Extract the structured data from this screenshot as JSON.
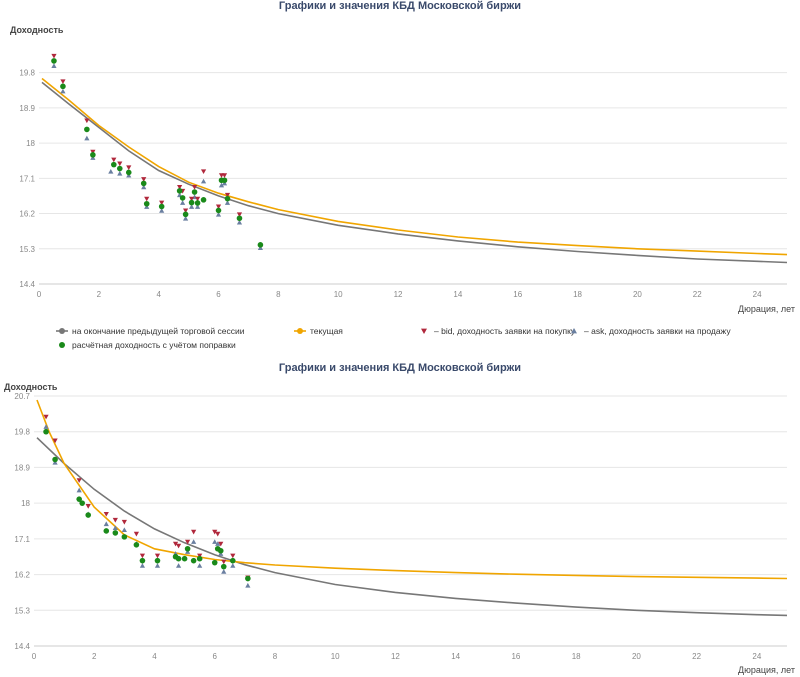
{
  "chart_data": [
    {
      "type": "scatter",
      "title": "Графики и значения КБД Московской биржи",
      "ylabel": "Доходность",
      "xlabel": "Дюрация, лет",
      "xlim": [
        0,
        25
      ],
      "ylim": [
        14.4,
        20.2
      ],
      "xticks": [
        "0",
        "2",
        "4",
        "6",
        "8",
        "10",
        "12",
        "14",
        "16",
        "18",
        "20",
        "22",
        "24"
      ],
      "yticks": [
        "19.8",
        "18.9",
        "18",
        "17.1",
        "16.2",
        "15.3",
        "14.4"
      ],
      "grid": true,
      "legend_position": "bottom",
      "legend": [
        {
          "label": "на окончание предыдущей торговой сессии",
          "marker": "circle",
          "color": "#777777"
        },
        {
          "label": "текущая",
          "marker": "circle",
          "color": "#f0a500"
        },
        {
          "label": "– bid, доходность заявки на покупку",
          "marker": "triangle-down",
          "color": "#b0283c"
        },
        {
          "label": "– ask, доходность заявки на продажу",
          "marker": "triangle-up",
          "color": "#6a7fa0"
        },
        {
          "label": "расчётная доходность с учётом поправки",
          "marker": "circle",
          "color": "#1a8a1a"
        }
      ],
      "series": [
        {
          "kind": "curve",
          "color": "#777777",
          "x": [
            0.1,
            1,
            2,
            3,
            4,
            5,
            6,
            7,
            8,
            10,
            12,
            14,
            16,
            18,
            20,
            22,
            24,
            25
          ],
          "y": [
            19.55,
            19.0,
            18.4,
            17.8,
            17.3,
            16.95,
            16.65,
            16.4,
            16.2,
            15.9,
            15.68,
            15.5,
            15.35,
            15.23,
            15.13,
            15.04,
            14.98,
            14.95
          ]
        },
        {
          "kind": "curve",
          "color": "#f0a500",
          "x": [
            0.1,
            1,
            2,
            3,
            4,
            5,
            6,
            7,
            8,
            10,
            12,
            14,
            16,
            18,
            20,
            22,
            24,
            25
          ],
          "y": [
            19.65,
            19.1,
            18.45,
            17.9,
            17.4,
            17.0,
            16.72,
            16.5,
            16.3,
            16.0,
            15.78,
            15.6,
            15.47,
            15.38,
            15.3,
            15.24,
            15.18,
            15.15
          ]
        },
        {
          "kind": "bid",
          "color": "#b0283c",
          "x": [
            0.5,
            0.8,
            1.6,
            1.8,
            2.5,
            2.7,
            3.0,
            3.5,
            3.6,
            4.1,
            4.7,
            4.8,
            4.9,
            5.1,
            5.2,
            5.3,
            5.5,
            6.0,
            6.1,
            6.2,
            6.3,
            6.7
          ],
          "y": [
            20.15,
            19.5,
            18.5,
            17.7,
            17.5,
            17.4,
            17.3,
            17.0,
            16.5,
            16.4,
            16.8,
            16.7,
            16.2,
            16.5,
            16.8,
            16.5,
            17.2,
            16.3,
            17.1,
            17.1,
            16.6,
            16.1
          ]
        },
        {
          "kind": "ask",
          "color": "#6a7fa0",
          "x": [
            0.5,
            0.8,
            1.6,
            1.8,
            2.4,
            2.7,
            3.0,
            3.5,
            3.6,
            4.1,
            4.7,
            4.8,
            4.9,
            5.1,
            5.2,
            5.3,
            5.5,
            6.0,
            6.1,
            6.2,
            6.3,
            6.7,
            7.4
          ],
          "y": [
            20.05,
            19.4,
            18.2,
            17.7,
            17.35,
            17.3,
            17.25,
            16.95,
            16.45,
            16.35,
            16.75,
            16.55,
            16.15,
            16.45,
            16.7,
            16.45,
            17.1,
            16.25,
            17.0,
            17.05,
            16.55,
            16.05,
            15.4
          ]
        },
        {
          "kind": "fitted",
          "color": "#1a8a1a",
          "x": [
            0.5,
            0.8,
            1.6,
            1.8,
            2.5,
            2.7,
            3.0,
            3.5,
            3.6,
            4.1,
            4.7,
            4.8,
            4.9,
            5.1,
            5.2,
            5.3,
            5.5,
            6.0,
            6.1,
            6.2,
            6.3,
            6.7,
            7.4
          ],
          "y": [
            20.1,
            19.45,
            18.35,
            17.7,
            17.45,
            17.35,
            17.25,
            16.97,
            16.45,
            16.38,
            16.78,
            16.6,
            16.18,
            16.48,
            16.75,
            16.47,
            16.55,
            16.28,
            17.05,
            17.05,
            16.58,
            16.08,
            15.4
          ]
        }
      ]
    },
    {
      "type": "scatter",
      "title": "Графики и значения КБД Московской биржи",
      "ylabel": "Доходность",
      "xlabel": "Дюрация, лет",
      "xlim": [
        0,
        25
      ],
      "ylim": [
        14.4,
        20.7
      ],
      "xticks": [
        "0",
        "2",
        "4",
        "6",
        "8",
        "10",
        "12",
        "14",
        "16",
        "18",
        "20",
        "22",
        "24"
      ],
      "yticks": [
        "20.7",
        "19.8",
        "18.9",
        "18",
        "17.1",
        "16.2",
        "15.3",
        "14.4"
      ],
      "grid": true,
      "series": [
        {
          "kind": "curve",
          "color": "#777777",
          "x": [
            0.1,
            1,
            2,
            3,
            4,
            5,
            6,
            7,
            8,
            10,
            12,
            14,
            16,
            18,
            20,
            22,
            24,
            25
          ],
          "y": [
            19.65,
            19.0,
            18.35,
            17.8,
            17.35,
            17.0,
            16.7,
            16.45,
            16.25,
            15.95,
            15.75,
            15.6,
            15.48,
            15.38,
            15.3,
            15.24,
            15.19,
            15.17
          ]
        },
        {
          "kind": "curve",
          "color": "#f0a500",
          "x": [
            0.1,
            0.5,
            1,
            2,
            3,
            4,
            5,
            6,
            7,
            8,
            10,
            12,
            14,
            16,
            18,
            20,
            22,
            24,
            25
          ],
          "y": [
            20.6,
            19.8,
            19.0,
            17.9,
            17.2,
            16.85,
            16.7,
            16.58,
            16.5,
            16.44,
            16.36,
            16.3,
            16.25,
            16.21,
            16.18,
            16.15,
            16.13,
            16.11,
            16.1
          ]
        },
        {
          "kind": "bid",
          "color": "#b0283c",
          "x": [
            0.4,
            0.7,
            1.5,
            1.8,
            2.4,
            2.7,
            3.0,
            3.4,
            3.6,
            4.1,
            4.7,
            4.8,
            5.1,
            5.3,
            5.5,
            6.0,
            6.1,
            6.2,
            6.3,
            6.6,
            7.1
          ],
          "y": [
            20.1,
            19.5,
            18.5,
            17.85,
            17.65,
            17.5,
            17.45,
            17.15,
            16.6,
            16.6,
            16.9,
            16.85,
            16.95,
            17.2,
            16.6,
            17.2,
            17.15,
            16.9,
            16.45,
            16.6,
            16.05
          ]
        },
        {
          "kind": "ask",
          "color": "#6a7fa0",
          "x": [
            0.4,
            0.7,
            1.5,
            1.8,
            2.4,
            2.7,
            3.0,
            3.4,
            3.6,
            4.1,
            4.7,
            4.8,
            5.1,
            5.3,
            5.5,
            6.0,
            6.1,
            6.2,
            6.3,
            6.6,
            7.1
          ],
          "y": [
            20.0,
            19.1,
            18.4,
            17.8,
            17.55,
            17.45,
            17.4,
            17.05,
            16.5,
            16.5,
            16.8,
            16.5,
            16.85,
            17.1,
            16.5,
            17.1,
            17.05,
            16.8,
            16.35,
            16.5,
            16.0
          ]
        },
        {
          "kind": "fitted",
          "color": "#1a8a1a",
          "x": [
            0.4,
            0.7,
            1.5,
            1.6,
            1.8,
            2.4,
            2.7,
            3.0,
            3.4,
            3.6,
            4.1,
            4.7,
            4.8,
            5.0,
            5.1,
            5.3,
            5.5,
            6.0,
            6.1,
            6.2,
            6.3,
            6.6,
            7.1
          ],
          "y": [
            19.8,
            19.1,
            18.1,
            18.0,
            17.7,
            17.3,
            17.25,
            17.15,
            16.95,
            16.55,
            16.55,
            16.65,
            16.6,
            16.6,
            16.85,
            16.55,
            16.6,
            16.5,
            16.85,
            16.8,
            16.4,
            16.55,
            16.1
          ]
        }
      ]
    }
  ]
}
